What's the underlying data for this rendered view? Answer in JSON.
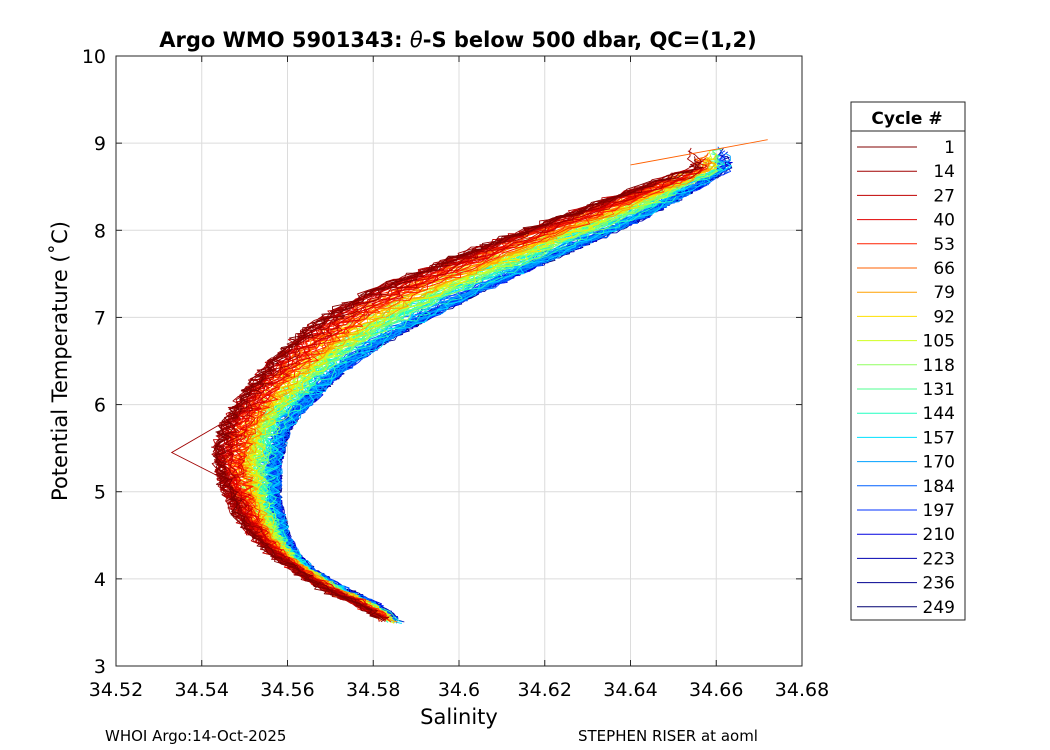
{
  "chart_data": {
    "type": "line",
    "title_prefix": "Argo WMO 5901343: ",
    "title_theta": "θ",
    "title_suffix": "-S below 500 dbar,  QC=(1,2)",
    "xlabel": "Salinity",
    "ylabel": "Potential Temperature (˚C)",
    "xlim": [
      34.52,
      34.68
    ],
    "ylim": [
      3,
      10
    ],
    "xticks": [
      34.52,
      34.54,
      34.56,
      34.58,
      34.6,
      34.62,
      34.64,
      34.66,
      34.68
    ],
    "xtick_labels": [
      "34.52",
      "34.54",
      "34.56",
      "34.58",
      "34.6",
      "34.62",
      "34.64",
      "34.66",
      "34.68"
    ],
    "yticks": [
      3,
      4,
      5,
      6,
      7,
      8,
      9,
      10
    ],
    "ytick_labels": [
      "3",
      "4",
      "5",
      "6",
      "7",
      "8",
      "9",
      "10"
    ],
    "grid": true,
    "legend_position": "right",
    "legend_title": "Cycle #",
    "legend": [
      {
        "label": "1",
        "color": "#800000"
      },
      {
        "label": "14",
        "color": "#a00000"
      },
      {
        "label": "27",
        "color": "#c00000"
      },
      {
        "label": "40",
        "color": "#e00000"
      },
      {
        "label": "53",
        "color": "#ff2000"
      },
      {
        "label": "66",
        "color": "#ff6000"
      },
      {
        "label": "79",
        "color": "#ffa000"
      },
      {
        "label": "92",
        "color": "#ffe000"
      },
      {
        "label": "105",
        "color": "#d0ff20"
      },
      {
        "label": "118",
        "color": "#90ff60"
      },
      {
        "label": "131",
        "color": "#50ff90"
      },
      {
        "label": "144",
        "color": "#20ffc0"
      },
      {
        "label": "157",
        "color": "#00e0ff"
      },
      {
        "label": "170",
        "color": "#00a0ff"
      },
      {
        "label": "184",
        "color": "#0060ff"
      },
      {
        "label": "197",
        "color": "#0030ff"
      },
      {
        "label": "210",
        "color": "#0000e0"
      },
      {
        "label": "223",
        "color": "#0000b0"
      },
      {
        "label": "236",
        "color": "#000090"
      },
      {
        "label": "249",
        "color": "#000070"
      }
    ],
    "series_shape": {
      "theta": [
        3.5,
        3.7,
        3.9,
        4.1,
        4.3,
        4.5,
        4.7,
        4.9,
        5.1,
        5.3,
        5.5,
        5.7,
        5.9,
        6.1,
        6.3,
        6.5,
        6.7,
        6.9,
        7.1,
        7.3,
        7.5,
        7.7,
        7.9,
        8.1,
        8.3,
        8.5,
        8.7
      ],
      "salinity_early": [
        34.583,
        34.577,
        34.568,
        34.562,
        34.556,
        34.552,
        34.549,
        34.547,
        34.545,
        34.544,
        34.544,
        34.545,
        34.547,
        34.55,
        34.553,
        34.557,
        34.561,
        34.566,
        34.572,
        34.58,
        34.59,
        34.6,
        34.61,
        34.621,
        34.632,
        34.643,
        34.655
      ],
      "salinity_late": [
        34.586,
        34.58,
        34.572,
        34.565,
        34.561,
        34.559,
        34.558,
        34.557,
        34.557,
        34.557,
        34.558,
        34.559,
        34.562,
        34.566,
        34.57,
        34.575,
        34.581,
        34.588,
        34.596,
        34.604,
        34.613,
        34.622,
        34.631,
        34.64,
        34.648,
        34.655,
        34.662
      ]
    },
    "extreme_points": {
      "min_salinity": 34.533,
      "min_salinity_theta": 5.45,
      "max_salinity": 34.672,
      "max_salinity_theta": 9.04,
      "min_theta": 3.5
    }
  },
  "footer": {
    "left": "WHOI Argo:14-Oct-2025",
    "right": "STEPHEN RISER at aoml"
  }
}
